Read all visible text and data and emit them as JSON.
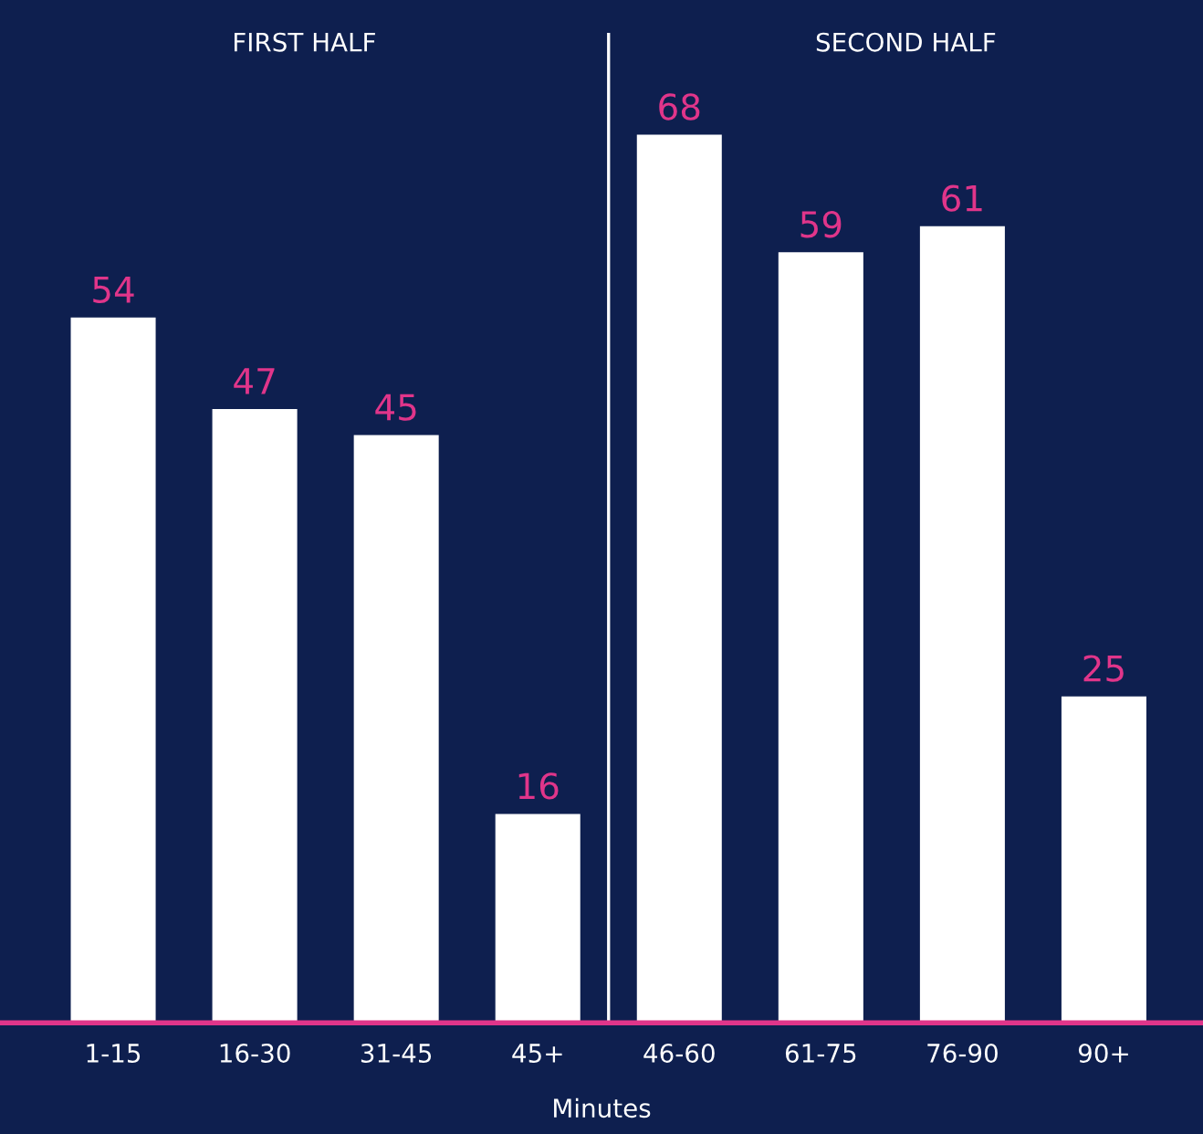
{
  "chart_data": {
    "type": "bar",
    "categories": [
      "1-15",
      "16-30",
      "31-45",
      "45+",
      "46-60",
      "61-75",
      "76-90",
      "90+"
    ],
    "values": [
      54,
      47,
      45,
      16,
      68,
      59,
      61,
      25
    ],
    "color": "#ffffff",
    "data_labels": true,
    "xlabel": "Minutes",
    "annotations": [
      "FIRST HALF",
      "SECOND HALF"
    ],
    "grid": false,
    "legend": false
  }
}
